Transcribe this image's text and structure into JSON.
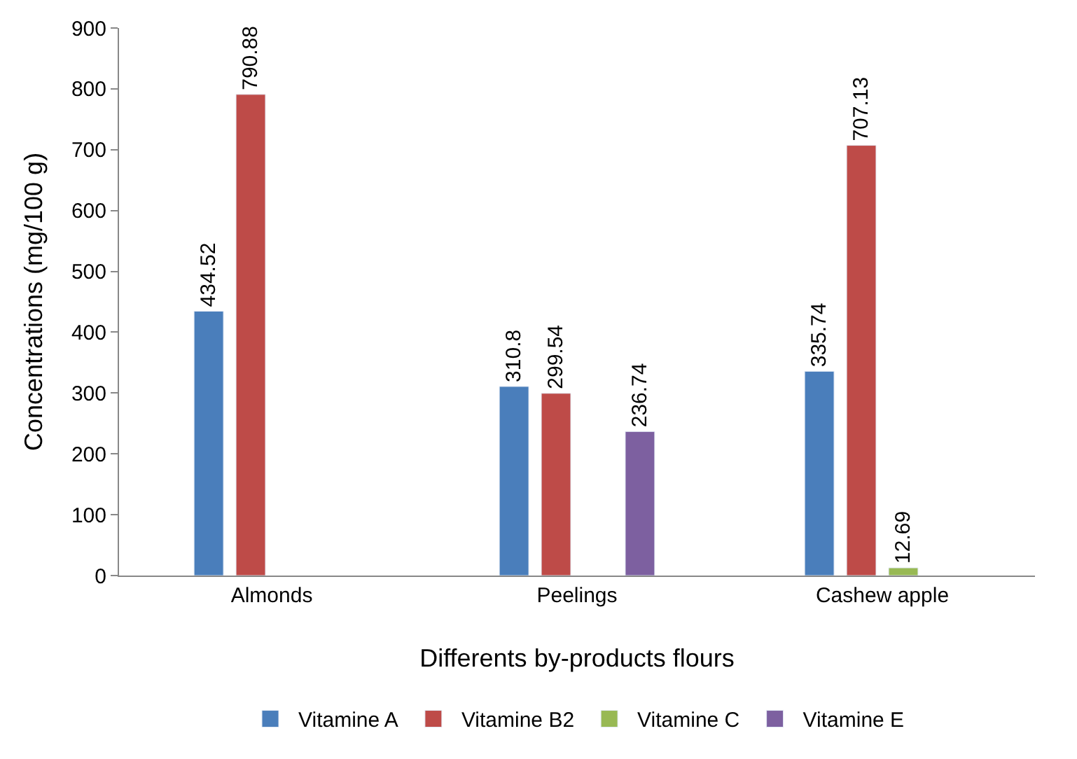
{
  "chart_data": {
    "type": "bar",
    "xlabel": "Differents by-products flours",
    "ylabel": "Concentrations (mg/100 g)",
    "categories": [
      "Almonds",
      "Peelings",
      "Cashew apple"
    ],
    "series": [
      {
        "name": "Vitamine A",
        "color": "#4a7ebb",
        "values": [
          434.52,
          310.8,
          335.74
        ]
      },
      {
        "name": "Vitamine B2",
        "color": "#be4b48",
        "values": [
          790.88,
          299.54,
          707.13
        ]
      },
      {
        "name": "Vitamine C",
        "color": "#98b954",
        "values": [
          null,
          null,
          12.69
        ]
      },
      {
        "name": "Vitamine E",
        "color": "#7d60a0",
        "values": [
          null,
          236.74,
          null
        ]
      }
    ],
    "ylim": [
      0,
      900
    ],
    "yticks": [
      0,
      100,
      200,
      300,
      400,
      500,
      600,
      700,
      800,
      900
    ],
    "data_labels": true,
    "legend": "bottom"
  }
}
